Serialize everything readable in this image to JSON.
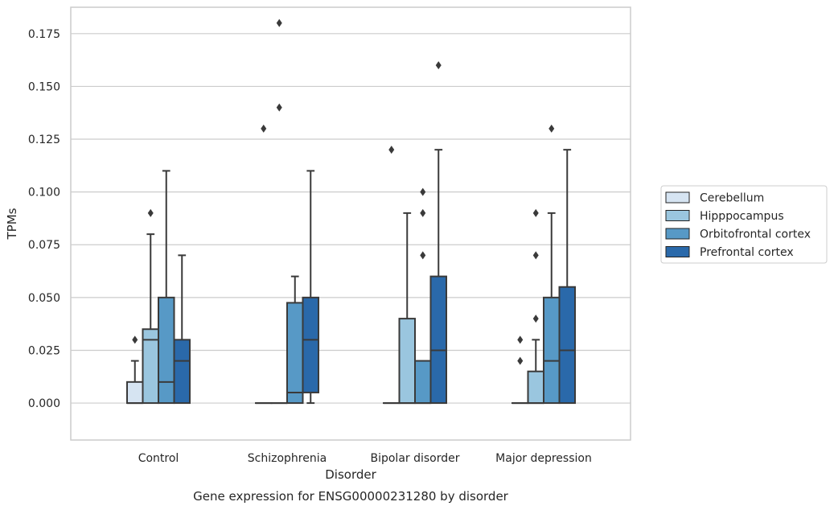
{
  "chart_data": {
    "type": "box",
    "xlabel": "Disorder",
    "ylabel": "TPMs",
    "caption": "Gene expression for ENSG00000231280 by disorder",
    "categories": [
      "Control",
      "Schizophrenia",
      "Bipolar disorder",
      "Major depression"
    ],
    "ylim": [
      -0.0175,
      0.1875
    ],
    "yticks": [
      0.0,
      0.025,
      0.05,
      0.075,
      0.1,
      0.125,
      0.15,
      0.175
    ],
    "ytick_labels": [
      "0.000",
      "0.025",
      "0.050",
      "0.075",
      "0.100",
      "0.125",
      "0.150",
      "0.175"
    ],
    "grid": "horizontal",
    "legend_position": "right-outside",
    "series": [
      {
        "name": "Cerebellum",
        "color": "#d6e4f2",
        "boxes": [
          {
            "q1": 0.0,
            "median": 0.0,
            "q3": 0.01,
            "whisker_low": 0.0,
            "whisker_high": 0.02,
            "outliers": [
              0.03
            ]
          },
          {
            "q1": 0.0,
            "median": 0.0,
            "q3": 0.0,
            "whisker_low": 0.0,
            "whisker_high": 0.0,
            "outliers": [
              0.13
            ]
          },
          {
            "q1": 0.0,
            "median": 0.0,
            "q3": 0.0,
            "whisker_low": 0.0,
            "whisker_high": 0.0,
            "outliers": [
              0.12
            ]
          },
          {
            "q1": 0.0,
            "median": 0.0,
            "q3": 0.0,
            "whisker_low": 0.0,
            "whisker_high": 0.0,
            "outliers": [
              0.02,
              0.03
            ]
          }
        ]
      },
      {
        "name": "Hipppocampus",
        "color": "#9ac6df",
        "boxes": [
          {
            "q1": 0.0,
            "median": 0.03,
            "q3": 0.035,
            "whisker_low": 0.0,
            "whisker_high": 0.08,
            "outliers": [
              0.09
            ]
          },
          {
            "q1": 0.0,
            "median": 0.0,
            "q3": 0.0,
            "whisker_low": 0.0,
            "whisker_high": 0.0,
            "outliers": [
              0.14,
              0.18
            ]
          },
          {
            "q1": 0.0,
            "median": 0.0,
            "q3": 0.04,
            "whisker_low": 0.0,
            "whisker_high": 0.09,
            "outliers": []
          },
          {
            "q1": 0.0,
            "median": 0.0,
            "q3": 0.015,
            "whisker_low": 0.0,
            "whisker_high": 0.03,
            "outliers": [
              0.04,
              0.07,
              0.09
            ]
          }
        ]
      },
      {
        "name": "Orbitofrontal cortex",
        "color": "#5799c6",
        "boxes": [
          {
            "q1": 0.0,
            "median": 0.01,
            "q3": 0.05,
            "whisker_low": 0.0,
            "whisker_high": 0.11,
            "outliers": []
          },
          {
            "q1": 0.0,
            "median": 0.005,
            "q3": 0.0475,
            "whisker_low": 0.0,
            "whisker_high": 0.06,
            "outliers": []
          },
          {
            "q1": 0.0,
            "median": 0.0,
            "q3": 0.02,
            "whisker_low": 0.0,
            "whisker_high": 0.02,
            "outliers": [
              0.07,
              0.09,
              0.1
            ]
          },
          {
            "q1": 0.0,
            "median": 0.02,
            "q3": 0.05,
            "whisker_low": 0.0,
            "whisker_high": 0.09,
            "outliers": [
              0.13
            ]
          }
        ]
      },
      {
        "name": "Prefrontal cortex",
        "color": "#2a69aa",
        "boxes": [
          {
            "q1": 0.0,
            "median": 0.02,
            "q3": 0.03,
            "whisker_low": 0.0,
            "whisker_high": 0.07,
            "outliers": []
          },
          {
            "q1": 0.005,
            "median": 0.03,
            "q3": 0.05,
            "whisker_low": 0.0,
            "whisker_high": 0.11,
            "outliers": []
          },
          {
            "q1": 0.0,
            "median": 0.025,
            "q3": 0.06,
            "whisker_low": 0.0,
            "whisker_high": 0.12,
            "outliers": [
              0.16
            ]
          },
          {
            "q1": 0.0,
            "median": 0.025,
            "q3": 0.055,
            "whisker_low": 0.0,
            "whisker_high": 0.12,
            "outliers": []
          }
        ]
      }
    ]
  }
}
